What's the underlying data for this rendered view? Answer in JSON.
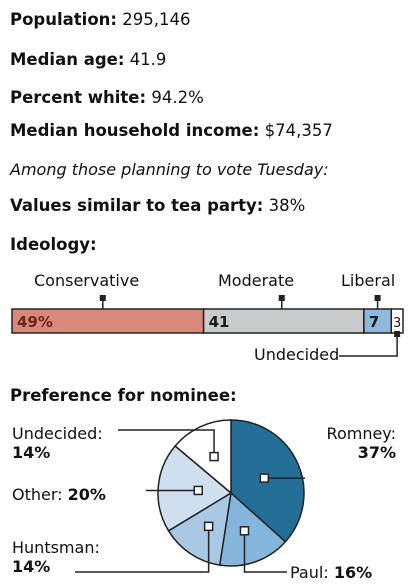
{
  "stats": [
    {
      "label": "Population:",
      "value": "295,146"
    },
    {
      "label": "Median age:",
      "value": "41.9"
    },
    {
      "label": "Percent white:",
      "value": "94.2%"
    },
    {
      "label": "Median household income:",
      "value": "$74,357"
    }
  ],
  "note": "Among those planning to vote Tuesday:",
  "tea_party": {
    "label": "Values similar to tea party:",
    "value": "38%"
  },
  "ideology_title": "Ideology:",
  "preference_title": "Preference for nominee:",
  "colors": {
    "conservative": "#d9897a",
    "moderate": "#c9cbcd",
    "liberal": "#8fb8dd",
    "undecided": "#ffffff",
    "romney": "#236f97",
    "paul": "#86b5db",
    "huntsman": "#a9c8e4",
    "other": "#cfdff0",
    "pie_undecided": "#ffffff",
    "outline": "#222222"
  },
  "chart_data": [
    {
      "type": "bar",
      "title": "Ideology:",
      "orientation": "horizontal-stacked",
      "categories": [
        "Conservative",
        "Moderate",
        "Liberal",
        "Undecided"
      ],
      "values": [
        49,
        41,
        7,
        3
      ],
      "value_labels": [
        "49%",
        "41",
        "7",
        "3"
      ]
    },
    {
      "type": "pie",
      "title": "Preference for nominee:",
      "categories": [
        "Romney",
        "Paul",
        "Huntsman",
        "Other",
        "Undecided"
      ],
      "values": [
        37,
        16,
        14,
        20,
        14
      ],
      "label_text": [
        "Romney:",
        "Paul:",
        "Huntsman:",
        "Other:",
        "Undecided:"
      ],
      "value_labels": [
        "37%",
        "16%",
        "14%",
        "20%",
        "14%"
      ]
    }
  ]
}
